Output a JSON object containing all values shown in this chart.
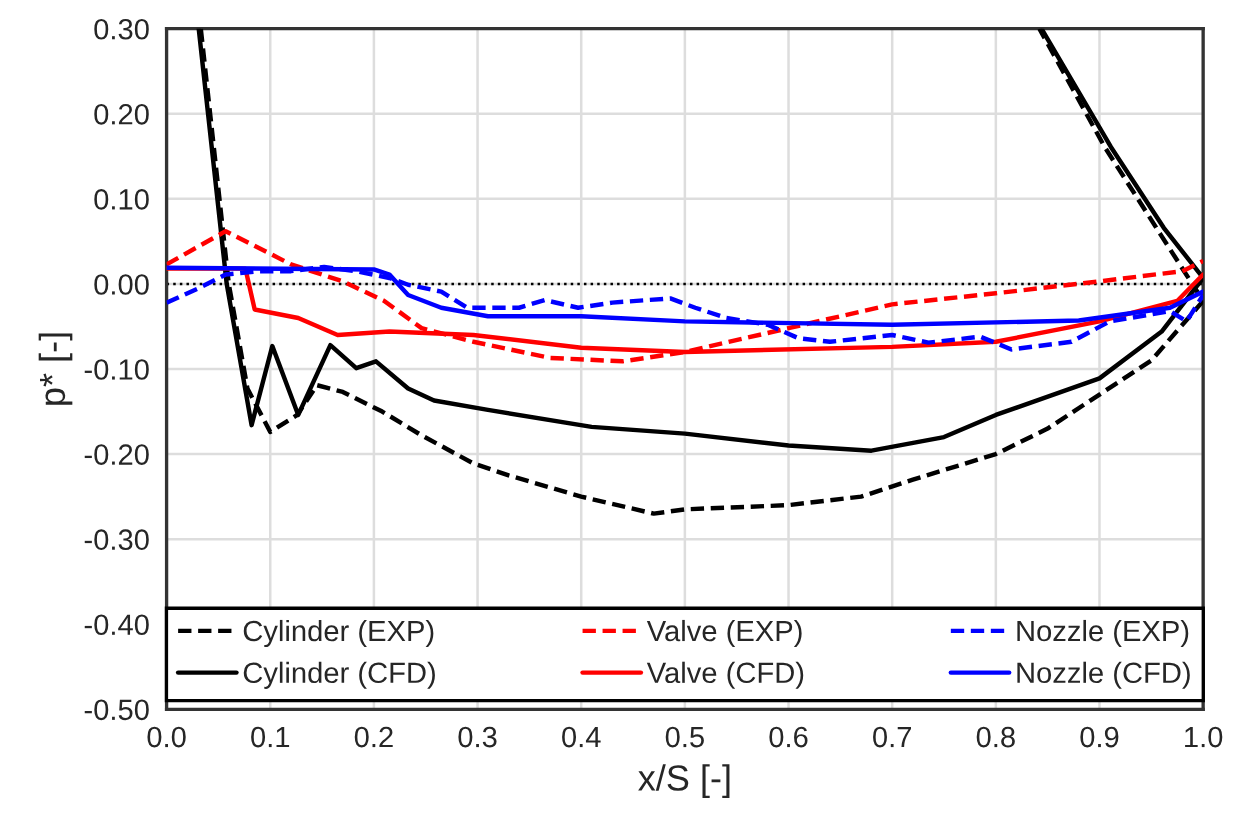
{
  "chart_data": {
    "type": "line",
    "xlabel": "x/S [-]",
    "ylabel": "p* [-]",
    "xlim": [
      0,
      1
    ],
    "ylim": [
      -0.5,
      0.3
    ],
    "xticks": [
      {
        "value": 0,
        "label": "0.0"
      },
      {
        "value": 0.1,
        "label": "0.1"
      },
      {
        "value": 0.2,
        "label": "0.2"
      },
      {
        "value": 0.3,
        "label": "0.3"
      },
      {
        "value": 0.4,
        "label": "0.4"
      },
      {
        "value": 0.5,
        "label": "0.5"
      },
      {
        "value": 0.6,
        "label": "0.6"
      },
      {
        "value": 0.7,
        "label": "0.7"
      },
      {
        "value": 0.8,
        "label": "0.8"
      },
      {
        "value": 0.9,
        "label": "0.9"
      },
      {
        "value": 1,
        "label": "1.0"
      }
    ],
    "yticks": [
      {
        "value": -0.5,
        "label": "-0.50"
      },
      {
        "value": -0.4,
        "label": "-0.40"
      },
      {
        "value": -0.3,
        "label": "-0.30"
      },
      {
        "value": -0.2,
        "label": "-0.20"
      },
      {
        "value": -0.1,
        "label": "-0.10"
      },
      {
        "value": 0,
        "label": "0.00"
      },
      {
        "value": 0.1,
        "label": "0.10"
      },
      {
        "value": 0.2,
        "label": "0.20"
      },
      {
        "value": 0.3,
        "label": "0.30"
      }
    ],
    "grid": true,
    "legend": "bottom",
    "marker": "none",
    "ref_lines": [
      {
        "axis": "y",
        "value": 0,
        "label": null,
        "color": "#000000",
        "line_style": "dotted"
      }
    ],
    "series": [
      {
        "name": "Cylinder (EXP)",
        "color": "#000000",
        "line_style": "dashed",
        "x": [
          0.033,
          0.06,
          0.078,
          0.1,
          0.126,
          0.145,
          0.17,
          0.208,
          0.246,
          0.296,
          0.33,
          0.4,
          0.47,
          0.5,
          0.6,
          0.67,
          0.72,
          0.8,
          0.85,
          0.9,
          0.95,
          1.0,
          0.959,
          0.905,
          0.842
        ],
        "values": [
          0.3,
          0.0,
          -0.123,
          -0.174,
          -0.154,
          -0.119,
          -0.127,
          -0.15,
          -0.178,
          -0.211,
          -0.225,
          -0.25,
          -0.27,
          -0.265,
          -0.26,
          -0.25,
          -0.23,
          -0.2,
          -0.17,
          -0.13,
          -0.09,
          -0.02,
          0.058,
          0.161,
          0.3
        ]
      },
      {
        "name": "Cylinder (CFD)",
        "color": "#000000",
        "line_style": "solid",
        "x": [
          0.031,
          0.058,
          0.082,
          0.102,
          0.127,
          0.158,
          0.183,
          0.202,
          0.233,
          0.258,
          0.31,
          0.41,
          0.5,
          0.6,
          0.68,
          0.75,
          0.8,
          0.9,
          0.96,
          1.0,
          0.962,
          0.911,
          0.845
        ],
        "values": [
          0.3,
          0.0,
          -0.166,
          -0.073,
          -0.154,
          -0.072,
          -0.099,
          -0.091,
          -0.123,
          -0.137,
          -0.148,
          -0.168,
          -0.176,
          -0.19,
          -0.196,
          -0.18,
          -0.154,
          -0.111,
          -0.056,
          0.007,
          0.066,
          0.161,
          0.298
        ]
      },
      {
        "name": "Valve (EXP)",
        "color": "#ff0000",
        "line_style": "dashed",
        "x": [
          0,
          0.057,
          0.12,
          0.17,
          0.21,
          0.246,
          0.296,
          0.37,
          0.44,
          0.5,
          0.6,
          0.7,
          0.8,
          0.9,
          0.98,
          1.0
        ],
        "values": [
          0.023,
          0.062,
          0.023,
          0.003,
          -0.02,
          -0.052,
          -0.068,
          -0.087,
          -0.091,
          -0.08,
          -0.052,
          -0.024,
          -0.011,
          0.003,
          0.015,
          0.027
        ]
      },
      {
        "name": "Valve (CFD)",
        "color": "#ff0000",
        "line_style": "solid",
        "x": [
          0,
          0.076,
          0.085,
          0.127,
          0.165,
          0.215,
          0.296,
          0.4,
          0.5,
          0.7,
          0.8,
          0.9,
          0.975,
          1.0
        ],
        "values": [
          0.018,
          0.018,
          -0.03,
          -0.04,
          -0.06,
          -0.056,
          -0.06,
          -0.075,
          -0.08,
          -0.074,
          -0.068,
          -0.044,
          -0.02,
          0.011
        ]
      },
      {
        "name": "Nozzle (EXP)",
        "color": "#0000ff",
        "line_style": "dashed",
        "x": [
          0,
          0.031,
          0.057,
          0.089,
          0.12,
          0.152,
          0.183,
          0.215,
          0.233,
          0.265,
          0.29,
          0.34,
          0.365,
          0.397,
          0.43,
          0.486,
          0.51,
          0.54,
          0.58,
          0.61,
          0.64,
          0.7,
          0.735,
          0.785,
          0.815,
          0.873,
          0.91,
          0.968,
          0.984,
          1.0
        ],
        "values": [
          -0.022,
          -0.005,
          0.011,
          0.015,
          0.015,
          0.02,
          0.015,
          0.007,
          -0.001,
          -0.009,
          -0.028,
          -0.028,
          -0.019,
          -0.028,
          -0.022,
          -0.017,
          -0.028,
          -0.04,
          -0.048,
          -0.064,
          -0.068,
          -0.06,
          -0.069,
          -0.062,
          -0.077,
          -0.068,
          -0.044,
          -0.032,
          -0.044,
          -0.013
        ]
      },
      {
        "name": "Nozzle (CFD)",
        "color": "#0000ff",
        "line_style": "solid",
        "x": [
          0,
          0.2,
          0.215,
          0.233,
          0.265,
          0.31,
          0.4,
          0.5,
          0.7,
          0.88,
          0.968,
          1.0
        ],
        "values": [
          0.019,
          0.017,
          0.011,
          -0.013,
          -0.028,
          -0.038,
          -0.038,
          -0.044,
          -0.048,
          -0.043,
          -0.028,
          -0.009
        ]
      }
    ]
  }
}
